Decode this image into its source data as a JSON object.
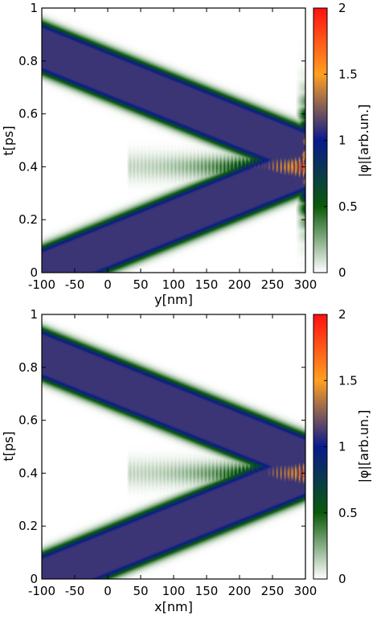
{
  "chart_data": [
    {
      "type": "heatmap",
      "title": "",
      "xlabel": "y[nm]",
      "ylabel": "t[ps]",
      "colorbar_label": "|φ|[arb.un.]",
      "xlim": [
        -100,
        300
      ],
      "ylim": [
        0,
        1
      ],
      "clim": [
        0,
        2
      ],
      "x_ticks": [
        -100,
        -50,
        0,
        50,
        100,
        150,
        200,
        250,
        300
      ],
      "x_tick_labels": [
        "-100",
        "-50",
        "0",
        "50",
        "100",
        "150",
        "200",
        "250",
        "300"
      ],
      "y_ticks": [
        0,
        0.2,
        0.4,
        0.6,
        0.8,
        1
      ],
      "y_tick_labels": [
        "0",
        "0.2",
        "0.4",
        "0.6",
        "0.8",
        "1"
      ],
      "colorbar_ticks": [
        0,
        0.5,
        1,
        1.5,
        2
      ],
      "colorbar_tick_labels": [
        "0",
        "0.5",
        "1",
        "1.5",
        "2"
      ],
      "colorscale": [
        "#ffffff",
        "#0a5a0a",
        "#0a1a8c",
        "#ffa020",
        "#ff1010"
      ],
      "features": [
        {
          "band": "incoming",
          "t_at_y_min": 0.0,
          "t_at_y_300": 0.4,
          "peak": 1.1
        },
        {
          "band": "reflected",
          "t_at_y_min": 0.85,
          "t_at_y_300": 0.45,
          "peak": 1.1
        },
        {
          "interference_region_y": [
            150,
            300
          ],
          "t_center": 0.4,
          "peak": 1.6
        }
      ]
    },
    {
      "type": "heatmap",
      "title": "",
      "xlabel": "x[nm]",
      "ylabel": "t[ps]",
      "colorbar_label": "|φ|[arb.un.]",
      "xlim": [
        -100,
        300
      ],
      "ylim": [
        0,
        1
      ],
      "clim": [
        0,
        2
      ],
      "x_ticks": [
        -100,
        -50,
        0,
        50,
        100,
        150,
        200,
        250,
        300
      ],
      "x_tick_labels": [
        "-100",
        "-50",
        "0",
        "50",
        "100",
        "150",
        "200",
        "250",
        "300"
      ],
      "y_ticks": [
        0,
        0.2,
        0.4,
        0.6,
        0.8,
        1
      ],
      "y_tick_labels": [
        "0",
        "0.2",
        "0.4",
        "0.6",
        "0.8",
        "1"
      ],
      "colorbar_ticks": [
        0,
        0.5,
        1,
        1.5,
        2
      ],
      "colorbar_tick_labels": [
        "0",
        "0.5",
        "1",
        "1.5",
        "2"
      ],
      "colorscale": [
        "#ffffff",
        "#0a5a0a",
        "#0a1a8c",
        "#ffa020",
        "#ff1010"
      ],
      "features": [
        {
          "band": "incoming",
          "t_at_y_min": 0.0,
          "t_at_y_300": 0.4,
          "peak": 1.1
        },
        {
          "band": "reflected",
          "t_at_y_min": 0.85,
          "t_at_y_300": 0.45,
          "peak": 1.1
        },
        {
          "interference_region_y": [
            150,
            300
          ],
          "t_center": 0.4,
          "peak": 1.5
        }
      ]
    }
  ]
}
